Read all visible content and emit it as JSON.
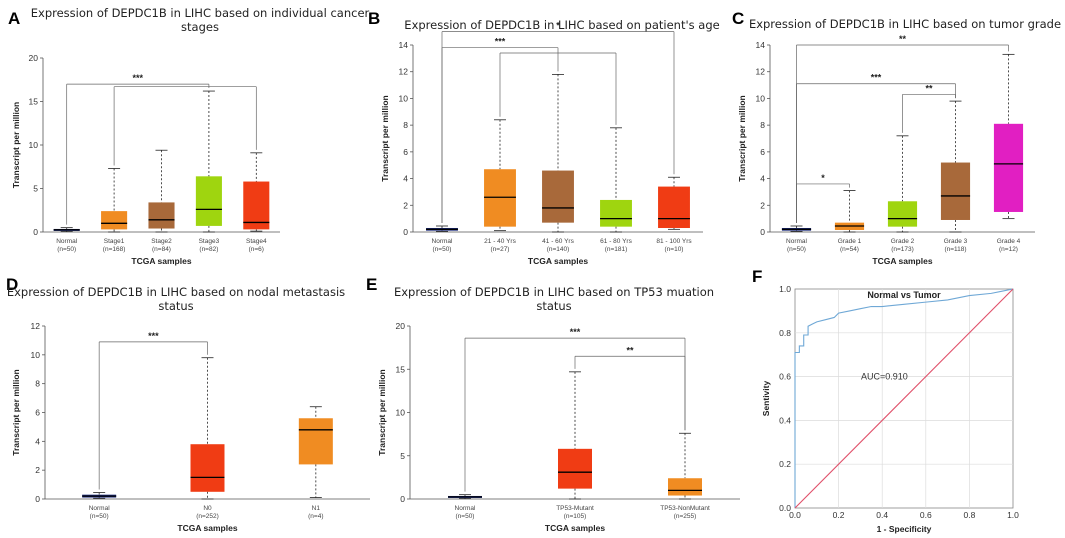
{
  "chart_data": [
    {
      "label": "A",
      "type": "box",
      "title": [
        "Expression of DEPDC1B in LIHC based on individual cancer",
        "stages"
      ],
      "xlabel": "TCGA samples",
      "ylabel": "Transcript per million",
      "ylim": [
        0,
        20
      ],
      "yticks": [
        0,
        5,
        10,
        15,
        20
      ],
      "groups": [
        {
          "name": "Normal",
          "n": "(n=50)",
          "color": "#1b2a7c",
          "min": 0.05,
          "q1": 0.15,
          "median": 0.25,
          "q3": 0.35,
          "max": 0.5
        },
        {
          "name": "Stage1",
          "n": "(n=168)",
          "color": "#f08c22",
          "min": 0.0,
          "q1": 0.3,
          "median": 1.0,
          "q3": 2.4,
          "max": 7.3
        },
        {
          "name": "Stage2",
          "n": "(n=84)",
          "color": "#a8693a",
          "min": 0.0,
          "q1": 0.4,
          "median": 1.4,
          "q3": 3.4,
          "max": 9.4
        },
        {
          "name": "Stage3",
          "n": "(n=82)",
          "color": "#9fd50f",
          "min": 0.0,
          "q1": 0.7,
          "median": 2.6,
          "q3": 6.4,
          "max": 16.2
        },
        {
          "name": "Stage4",
          "n": "(n=6)",
          "color": "#f03c14",
          "min": 0.1,
          "q1": 0.3,
          "median": 1.1,
          "q3": 5.8,
          "max": 9.1
        }
      ],
      "significance": [
        {
          "from": 0,
          "to": 3,
          "y": 17.0,
          "label": "***"
        },
        {
          "from": 1,
          "to": 4,
          "y": 16.7,
          "label": ""
        }
      ]
    },
    {
      "label": "B",
      "type": "box",
      "title": [
        "Expression of DEPDC1B in LIHC based on patient's age"
      ],
      "xlabel": "TCGA samples",
      "ylabel": "Transcript per million",
      "ylim": [
        0,
        14
      ],
      "yticks": [
        0,
        2,
        4,
        6,
        8,
        10,
        12,
        14
      ],
      "groups": [
        {
          "name": "Normal",
          "n": "(n=50)",
          "color": "#1b2a7c",
          "min": 0.05,
          "q1": 0.1,
          "median": 0.2,
          "q3": 0.3,
          "max": 0.45
        },
        {
          "name": "21 - 40 Yrs",
          "n": "(n=27)",
          "color": "#f08c22",
          "min": 0.1,
          "q1": 0.4,
          "median": 2.6,
          "q3": 4.7,
          "max": 8.4
        },
        {
          "name": "41 - 60 Yrs",
          "n": "(n=140)",
          "color": "#a8693a",
          "min": 0.0,
          "q1": 0.7,
          "median": 1.8,
          "q3": 4.6,
          "max": 11.8
        },
        {
          "name": "61 - 80 Yrs",
          "n": "(n=181)",
          "color": "#9fd50f",
          "min": 0.0,
          "q1": 0.4,
          "median": 1.0,
          "q3": 2.4,
          "max": 7.8
        },
        {
          "name": "81 - 100 Yrs",
          "n": "(n=10)",
          "color": "#f03c14",
          "min": 0.2,
          "q1": 0.3,
          "median": 1.0,
          "q3": 3.4,
          "max": 4.1
        }
      ],
      "significance": [
        {
          "from": 0,
          "to": 4,
          "y": 15.0,
          "label": "*"
        },
        {
          "from": 0,
          "to": 2,
          "y": 13.8,
          "label": "***"
        },
        {
          "from": 1,
          "to": 3,
          "y": 13.4,
          "label": ""
        }
      ]
    },
    {
      "label": "C",
      "type": "box",
      "title": [
        "Expression of DEPDC1B in LIHC based on tumor grade"
      ],
      "xlabel": "TCGA samples",
      "ylabel": "Transcript per million",
      "ylim": [
        0,
        14
      ],
      "yticks": [
        0,
        2,
        4,
        6,
        8,
        10,
        12,
        14
      ],
      "groups": [
        {
          "name": "Normal",
          "n": "(n=50)",
          "color": "#1b2a7c",
          "min": 0.05,
          "q1": 0.1,
          "median": 0.2,
          "q3": 0.3,
          "max": 0.45
        },
        {
          "name": "Grade 1",
          "n": "(n=54)",
          "color": "#f08c22",
          "min": 0.0,
          "q1": 0.15,
          "median": 0.45,
          "q3": 0.7,
          "max": 3.1
        },
        {
          "name": "Grade 2",
          "n": "(n=173)",
          "color": "#9fd50f",
          "min": 0.0,
          "q1": 0.4,
          "median": 1.0,
          "q3": 2.3,
          "max": 7.2
        },
        {
          "name": "Grade 3",
          "n": "(n=118)",
          "color": "#a8693a",
          "min": 0.0,
          "q1": 0.9,
          "median": 2.7,
          "q3": 5.2,
          "max": 9.8
        },
        {
          "name": "Grade 4",
          "n": "(n=12)",
          "color": "#e11fc2",
          "min": 1.0,
          "q1": 1.5,
          "median": 5.1,
          "q3": 8.1,
          "max": 13.3
        }
      ],
      "significance": [
        {
          "from": 0,
          "to": 4,
          "y": 14.0,
          "label": "**"
        },
        {
          "from": 0,
          "to": 3,
          "y": 11.1,
          "label": "***"
        },
        {
          "from": 2,
          "to": 3,
          "y": 10.3,
          "label": "**"
        },
        {
          "from": 0,
          "to": 1,
          "y": 3.6,
          "label": "*"
        }
      ]
    },
    {
      "label": "D",
      "type": "box",
      "title": [
        "Expression of DEPDC1B in LIHC based on nodal metastasis",
        "status"
      ],
      "xlabel": "TCGA samples",
      "ylabel": "Transcript per million",
      "ylim": [
        0,
        12
      ],
      "yticks": [
        0,
        2,
        4,
        6,
        8,
        10,
        12
      ],
      "groups": [
        {
          "name": "Normal",
          "n": "(n=50)",
          "color": "#1b2a7c",
          "min": 0.05,
          "q1": 0.1,
          "median": 0.2,
          "q3": 0.3,
          "max": 0.45
        },
        {
          "name": "N0",
          "n": "(n=252)",
          "color": "#f03c14",
          "min": 0.0,
          "q1": 0.5,
          "median": 1.5,
          "q3": 3.8,
          "max": 9.8
        },
        {
          "name": "N1",
          "n": "(n=4)",
          "color": "#f08c22",
          "min": 0.1,
          "q1": 2.4,
          "median": 4.8,
          "q3": 5.6,
          "max": 6.4
        }
      ],
      "significance": [
        {
          "from": 0,
          "to": 1,
          "y": 10.9,
          "label": "***"
        }
      ]
    },
    {
      "label": "E",
      "type": "box",
      "title": [
        "Expression of DEPDC1B in LIHC based on TP53 muation",
        "status"
      ],
      "xlabel": "TCGA samples",
      "ylabel": "Transcript per million",
      "ylim": [
        0,
        20
      ],
      "yticks": [
        0,
        5,
        10,
        15,
        20
      ],
      "groups": [
        {
          "name": "Normal",
          "n": "(n=50)",
          "color": "#1b2a7c",
          "min": 0.05,
          "q1": 0.15,
          "median": 0.25,
          "q3": 0.35,
          "max": 0.5
        },
        {
          "name": "TP53-Mutant",
          "n": "(n=105)",
          "color": "#f03c14",
          "min": 0.0,
          "q1": 1.2,
          "median": 3.1,
          "q3": 5.8,
          "max": 14.7
        },
        {
          "name": "TP53-NonMutant",
          "n": "(n=255)",
          "color": "#f08c22",
          "min": 0.0,
          "q1": 0.4,
          "median": 1.0,
          "q3": 2.4,
          "max": 7.6
        }
      ],
      "significance": [
        {
          "from": 0,
          "to": 2,
          "y": 18.6,
          "label": "***"
        },
        {
          "from": 1,
          "to": 2,
          "y": 16.5,
          "label": "**"
        }
      ]
    },
    {
      "label": "F",
      "type": "line",
      "title": "Normal vs Tumor",
      "xlabel": "1 - Specificity",
      "ylabel": "Sentivity",
      "xlim": [
        0,
        1
      ],
      "ylim": [
        0,
        1
      ],
      "xticks": [
        "0.0",
        "0.2",
        "0.4",
        "0.6",
        "0.8",
        "1.0"
      ],
      "yticks": [
        "0.0",
        "0.2",
        "0.4",
        "0.6",
        "0.8",
        "1.0"
      ],
      "annotation": "AUC=0.910",
      "series": [
        {
          "name": "ROC",
          "color": "#6fa8d6",
          "x": [
            0.0,
            0.0,
            0.02,
            0.02,
            0.04,
            0.04,
            0.06,
            0.06,
            0.08,
            0.1,
            0.14,
            0.18,
            0.2,
            0.25,
            0.3,
            0.35,
            0.4,
            0.5,
            0.6,
            0.7,
            0.8,
            0.9,
            0.95,
            1.0
          ],
          "y": [
            0.0,
            0.71,
            0.71,
            0.74,
            0.74,
            0.79,
            0.79,
            0.83,
            0.84,
            0.85,
            0.86,
            0.87,
            0.89,
            0.9,
            0.91,
            0.92,
            0.92,
            0.93,
            0.94,
            0.95,
            0.97,
            0.98,
            0.99,
            1.0
          ]
        },
        {
          "name": "Reference",
          "color": "#e0506a",
          "x": [
            0,
            1
          ],
          "y": [
            0,
            1
          ]
        }
      ]
    }
  ]
}
